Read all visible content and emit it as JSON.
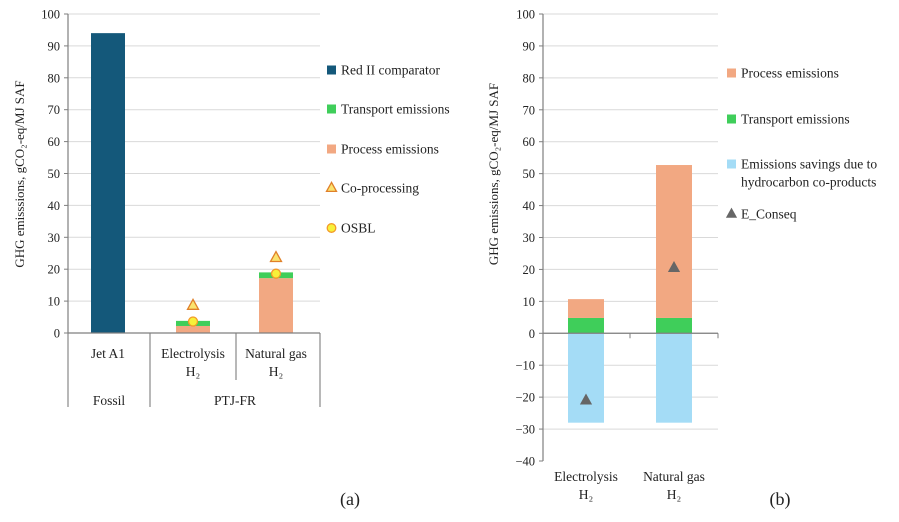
{
  "colors": {
    "red2": "#14587a",
    "transport": "#3fce5a",
    "process": "#f2a882",
    "savings": "#a4dcf6",
    "coproc_fill": "#fbe36e",
    "coproc_stroke": "#e0802a",
    "osbl_fill": "#f7f13a",
    "osbl_stroke": "#f39a2a",
    "econseq": "#666666",
    "axis": "#7f7f7f",
    "grid": "#d9d9d9"
  },
  "chart_data": [
    {
      "type": "bar",
      "stacked": true,
      "panel_label": "(a)",
      "ylabel": "GHG emisssions, gCO₂-eq/MJ SAF",
      "ylim": [
        0,
        100
      ],
      "yticks": [
        0,
        10,
        20,
        30,
        40,
        50,
        60,
        70,
        80,
        90,
        100
      ],
      "categories": [
        "Jet A1",
        "Electrolysis H₂",
        "Natural gas H₂"
      ],
      "category_lines": [
        [
          "Jet A1"
        ],
        [
          "Electrolysis",
          "H₂"
        ],
        [
          "Natural gas",
          "H₂"
        ]
      ],
      "groups": [
        {
          "label": "Fossil",
          "categories": [
            "Jet A1"
          ]
        },
        {
          "label": "PTJ-FR",
          "categories": [
            "Electrolysis H₂",
            "Natural gas H₂"
          ]
        }
      ],
      "series": [
        {
          "name": "Red II comparator",
          "kind": "bar",
          "color_key": "red2",
          "values": [
            94,
            0,
            0
          ]
        },
        {
          "name": "Process emissions",
          "kind": "bar",
          "color_key": "process",
          "values": [
            0,
            2.2,
            17.2
          ]
        },
        {
          "name": "Transport emissions",
          "kind": "bar",
          "color_key": "transport",
          "values": [
            0,
            1.6,
            1.8
          ]
        },
        {
          "name": "Co-processing",
          "kind": "triangle",
          "values": [
            null,
            8.6,
            23.6
          ]
        },
        {
          "name": "OSBL",
          "kind": "circle",
          "values": [
            null,
            3.6,
            18.6
          ]
        }
      ],
      "legend": [
        "Red II comparator",
        "Transport emissions",
        "Process emissions",
        "Co-processing",
        "OSBL"
      ]
    },
    {
      "type": "bar",
      "stacked": true,
      "panel_label": "(b)",
      "ylabel": "GHG emissions, gCO₂-eq/MJ SAF",
      "ylim": [
        -40,
        100
      ],
      "yticks": [
        -40,
        -30,
        -20,
        -10,
        0,
        10,
        20,
        30,
        40,
        50,
        60,
        70,
        80,
        90,
        100
      ],
      "categories": [
        "Electrolysis H₂",
        "Natural gas H₂"
      ],
      "category_lines": [
        [
          "Electrolysis",
          "H₂"
        ],
        [
          "Natural gas",
          "H₂"
        ]
      ],
      "series": [
        {
          "name": "Transport emissions",
          "kind": "bar",
          "color_key": "transport",
          "values": [
            4.8,
            4.8
          ]
        },
        {
          "name": "Process emissions",
          "kind": "bar",
          "color_key": "process",
          "values": [
            5.9,
            47.9
          ]
        },
        {
          "name": "Emissions savings due to hydrocarbon co-products",
          "kind": "bar",
          "color_key": "savings",
          "values": [
            -28,
            -28
          ]
        },
        {
          "name": "E_Conseq",
          "kind": "triangle",
          "values": [
            -21,
            20.5
          ]
        }
      ],
      "legend": [
        "Process emissions",
        "Transport emissions",
        "Emissions savings due to hydrocarbon co-products",
        "E_Conseq"
      ]
    }
  ]
}
